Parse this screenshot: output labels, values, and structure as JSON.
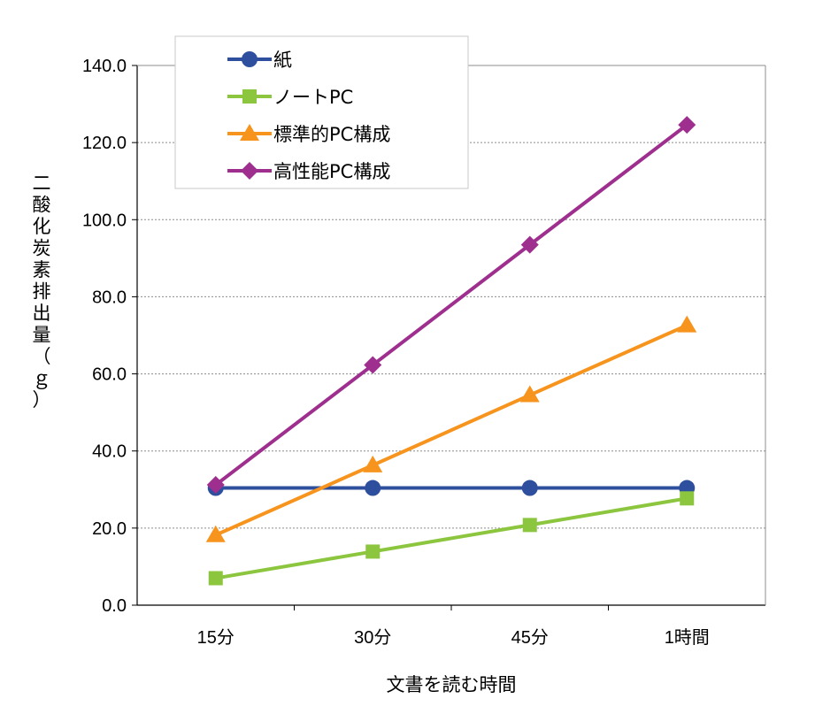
{
  "chart_data": {
    "type": "line",
    "title": "",
    "xlabel": "文書を読む時間",
    "ylabel": "二酸化炭素排出量（ｇ）",
    "categories": [
      "15分",
      "30分",
      "45分",
      "1時間"
    ],
    "ylim": [
      0,
      140
    ],
    "yticks": [
      "0.0",
      "20.0",
      "40.0",
      "60.0",
      "80.0",
      "100.0",
      "120.0",
      "140.0"
    ],
    "grid": true,
    "legend_position": "top-left",
    "series": [
      {
        "name": "紙",
        "values": [
          30.4,
          30.4,
          30.4,
          30.4
        ],
        "color": "#2e4f9e",
        "marker": "circle"
      },
      {
        "name": "ノートPC",
        "values": [
          7.0,
          13.9,
          20.8,
          27.7
        ],
        "color": "#8cc63f",
        "marker": "square"
      },
      {
        "name": "標準的PC構成",
        "values": [
          18.2,
          36.3,
          54.5,
          72.6
        ],
        "color": "#f7941d",
        "marker": "triangle"
      },
      {
        "name": "高性能PC構成",
        "values": [
          31.2,
          62.3,
          93.5,
          124.6
        ],
        "color": "#9e2f8f",
        "marker": "diamond"
      }
    ]
  }
}
